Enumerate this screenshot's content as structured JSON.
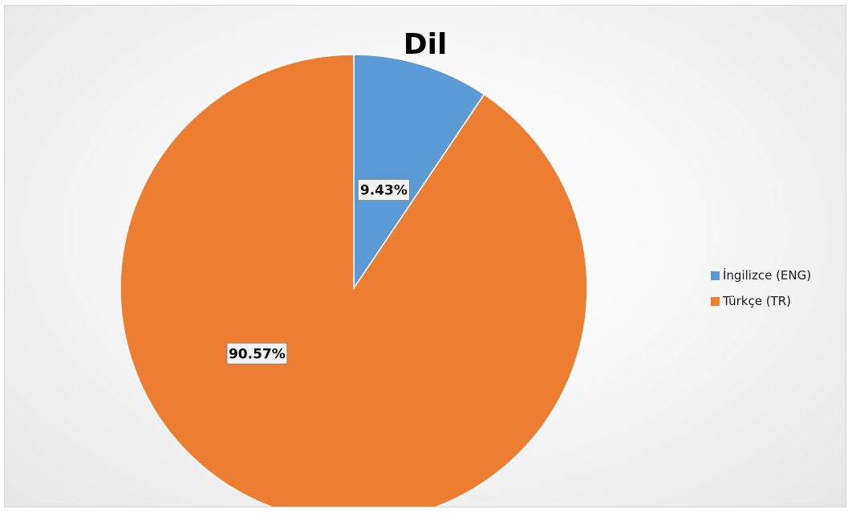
{
  "chart_data": {
    "type": "pie",
    "title": "Dil",
    "categories": [
      "İngilizce (ENG)",
      "Türkçe (TR)"
    ],
    "values": [
      9.43,
      90.57
    ],
    "data_labels": [
      "9.43%",
      "90.57%"
    ],
    "colors": [
      "#5b9bd5",
      "#ed7d31"
    ],
    "start_angle_deg": 0,
    "direction": "clockwise",
    "legend_position": "right"
  }
}
